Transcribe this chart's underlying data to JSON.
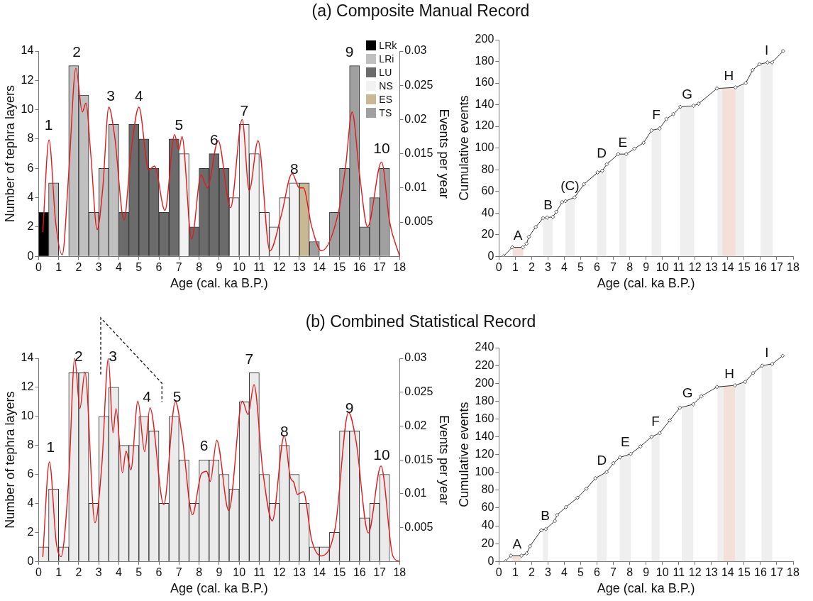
{
  "chart_data": [
    {
      "type": "bar",
      "title": "(a) Composite Manual Record",
      "xlabel": "Age (cal. ka B.P.)",
      "ylabel": "Number of tephra layers",
      "y2label": "Events per year",
      "legend": "top right",
      "xlim": [
        0,
        18
      ],
      "xticks": [
        0,
        1,
        2,
        3,
        4,
        5,
        6,
        7,
        8,
        9,
        10,
        11,
        12,
        13,
        14,
        15,
        16,
        17,
        18
      ],
      "ylim": [
        0,
        14
      ],
      "yticks": [
        0,
        2,
        4,
        6,
        8,
        10,
        12,
        14
      ],
      "y2lim": [
        0,
        0.03
      ],
      "y2ticks": [
        0.005,
        0.01,
        0.015,
        0.02,
        0.025,
        0.03
      ],
      "series": [
        {
          "name": "LRk",
          "color": "#000000",
          "x": [
            0.25
          ],
          "values": [
            3
          ]
        },
        {
          "name": "LRi",
          "color": "#c0c0c0",
          "x": [
            0.75,
            1.75,
            2.25,
            2.75,
            3.25,
            3.75
          ],
          "values": [
            5,
            13,
            11,
            3,
            6,
            9
          ]
        },
        {
          "name": "LU",
          "color": "#6b6b6b",
          "x": [
            4.25,
            4.75,
            5.25,
            5.75,
            6.25,
            6.75,
            7.75,
            8.25,
            8.75,
            9.25
          ],
          "values": [
            3,
            9,
            8,
            6,
            3,
            8,
            2,
            6,
            7,
            6
          ]
        },
        {
          "name": "NS",
          "color": "#f2f2f2",
          "x": [
            7.25,
            9.75,
            10.25,
            10.75,
            11.25,
            11.75,
            12.25,
            12.75
          ],
          "values": [
            7,
            4,
            9,
            7,
            3,
            2,
            4,
            5
          ]
        },
        {
          "name": "ES",
          "color": "#c8b896",
          "x": [
            13.25
          ],
          "values": [
            5
          ]
        },
        {
          "name": "TS",
          "color": "#a0a0a0",
          "x": [
            13.75,
            14.75,
            15.25,
            15.75,
            16.25,
            16.75,
            17.25
          ],
          "values": [
            1,
            3,
            6,
            13,
            2,
            4,
            6
          ]
        },
        {
          "type": "line",
          "axis": "y2",
          "color": "#e41a1c",
          "x": [
            0.21,
            0.52,
            0.85,
            1.18,
            1.5,
            1.86,
            2.18,
            2.36,
            2.6,
            2.92,
            3.2,
            3.5,
            3.79,
            4.26,
            4.6,
            5.0,
            5.49,
            5.78,
            6.3,
            6.78,
            6.99,
            7.15,
            7.63,
            8.1,
            8.41,
            8.95,
            9.57,
            10.15,
            10.5,
            10.94,
            11.53,
            12.1,
            12.64,
            13.0,
            13.2,
            13.6,
            14.1,
            14.93,
            15.3,
            15.63,
            16.0,
            16.4,
            17.1,
            17.5,
            18.0
          ],
          "values": [
            0.0036,
            0.017,
            0.005,
            0.0002,
            0.012,
            0.0275,
            0.0211,
            0.0224,
            0.015,
            0.0039,
            0.01,
            0.0218,
            0.0176,
            0.0053,
            0.015,
            0.0218,
            0.0126,
            0.0132,
            0.0067,
            0.0178,
            0.0155,
            0.0175,
            0.0025,
            0.0119,
            0.01,
            0.0169,
            0.0071,
            0.02,
            0.0096,
            0.0169,
            0.0008,
            0.006,
            0.0121,
            0.01,
            0.01,
            0.0045,
            0.0008,
            0.0062,
            0.013,
            0.0211,
            0.012,
            0.0043,
            0.0138,
            0.005,
            0.0
          ]
        }
      ],
      "annotations": [
        {
          "text": "1",
          "x": 0.5,
          "y": 8
        },
        {
          "text": "2",
          "x": 1.9,
          "y": 13
        },
        {
          "text": "3",
          "x": 3.6,
          "y": 10
        },
        {
          "text": "4",
          "x": 5.0,
          "y": 10
        },
        {
          "text": "5",
          "x": 7.0,
          "y": 8
        },
        {
          "text": "6",
          "x": 8.75,
          "y": 7
        },
        {
          "text": "7",
          "x": 10.25,
          "y": 9
        },
        {
          "text": "8",
          "x": 12.75,
          "y": 5
        },
        {
          "text": "9",
          "x": 15.5,
          "y": 13
        },
        {
          "text": "10",
          "x": 17.1,
          "y": 6.4
        }
      ]
    },
    {
      "type": "line",
      "ylabel": "Cumulative events",
      "xlabel": "Age (cal. ka B.P.)",
      "marker": "diamond",
      "xlim": [
        0,
        18
      ],
      "xticks": [
        0,
        1,
        2,
        3,
        4,
        5,
        6,
        7,
        8,
        9,
        10,
        11,
        12,
        13,
        14,
        15,
        16,
        17,
        18
      ],
      "ylim": [
        0,
        200
      ],
      "yticks": [
        0,
        20,
        40,
        60,
        80,
        100,
        120,
        140,
        160,
        180,
        200
      ],
      "series": [
        {
          "color": "#333333",
          "x": [
            0.28,
            0.81,
            1.47,
            1.69,
            1.83,
            2.25,
            2.7,
            2.95,
            3.3,
            3.51,
            3.86,
            4.07,
            4.63,
            5.2,
            6.04,
            6.32,
            6.6,
            7.3,
            7.79,
            8.29,
            8.85,
            9.34,
            9.83,
            10.25,
            10.67,
            11.1,
            11.91,
            12.22,
            13.34,
            14.47,
            15.1,
            15.52,
            15.94,
            16.43,
            16.71,
            17.39
          ],
          "values": [
            0,
            8.3,
            8.3,
            11.6,
            18,
            27,
            35.3,
            35.8,
            36.4,
            41,
            50,
            51,
            54.4,
            66.5,
            77.5,
            79,
            85,
            94.4,
            94.4,
            99.4,
            104.8,
            116.3,
            118,
            126.8,
            131.3,
            138,
            139,
            141,
            155,
            156,
            160,
            172,
            177.4,
            179,
            179,
            189.5
          ]
        }
      ],
      "bands": [
        {
          "axis": "x",
          "from": 0.84,
          "to": 1.49,
          "color": "#f3e0d8",
          "label": "A"
        },
        {
          "axis": "x",
          "from": 2.71,
          "to": 3.3,
          "color": "#efefef",
          "label": "B"
        },
        {
          "axis": "x",
          "from": 4.06,
          "to": 4.63,
          "color": "#efefef",
          "label": "(C)"
        },
        {
          "axis": "x",
          "from": 6.01,
          "to": 6.57,
          "color": "#efefef",
          "label": "D"
        },
        {
          "axis": "x",
          "from": 7.37,
          "to": 7.79,
          "color": "#efefef",
          "label": "E"
        },
        {
          "axis": "x",
          "from": 9.34,
          "to": 9.92,
          "color": "#efefef",
          "label": "F"
        },
        {
          "axis": "x",
          "from": 11.1,
          "to": 11.94,
          "color": "#efefef",
          "label": "G"
        },
        {
          "axis": "x",
          "from": 13.37,
          "to": 15.0,
          "color": "#efefef"
        },
        {
          "axis": "x",
          "from": 13.67,
          "to": 14.47,
          "color": "#f3e0d8",
          "label": "H"
        },
        {
          "axis": "x",
          "from": 16.01,
          "to": 16.74,
          "color": "#efefef",
          "label": "I"
        }
      ]
    },
    {
      "type": "bar",
      "title": "(b) Combined Statistical Record",
      "xlabel": "Age (cal. ka B.P.)",
      "ylabel": "Number of tephra layers",
      "y2label": "Events per year",
      "xlim": [
        0,
        18
      ],
      "xticks": [
        0,
        1,
        2,
        3,
        4,
        5,
        6,
        7,
        8,
        9,
        10,
        11,
        12,
        13,
        14,
        15,
        16,
        17,
        18
      ],
      "ylim": [
        0,
        14
      ],
      "yticks": [
        0,
        2,
        4,
        6,
        8,
        10,
        12,
        14
      ],
      "y2lim": [
        0,
        0.03
      ],
      "y2ticks": [
        0.005,
        0.01,
        0.015,
        0.02,
        0.025,
        0.03
      ],
      "series": [
        {
          "color": "#ebebeb",
          "x": [
            0.25,
            0.75,
            1.25,
            1.75,
            2.25,
            2.75,
            3.25,
            3.75,
            4.25,
            4.75,
            5.25,
            5.75,
            6.25,
            6.75,
            7.25,
            7.75,
            8.25,
            8.75,
            9.25,
            9.75,
            10.25,
            10.75,
            11.25,
            11.75,
            12.25,
            12.75,
            13.25,
            13.75,
            14.25,
            14.75,
            15.25,
            15.75,
            16.25,
            16.75,
            17.25
          ],
          "values": [
            1,
            5,
            1,
            13,
            13,
            4,
            10,
            12,
            8,
            8,
            10,
            9,
            4,
            10,
            7,
            4,
            7,
            7,
            6,
            5,
            11,
            13,
            6,
            4,
            8,
            6,
            4,
            1,
            1,
            2,
            9,
            9,
            3,
            4,
            6
          ]
        },
        {
          "type": "line",
          "axis": "y2",
          "color": "#e41a1c",
          "x": [
            0.21,
            0.54,
            0.88,
            1.12,
            1.5,
            1.8,
            2.06,
            2.31,
            2.81,
            3.15,
            3.48,
            3.71,
            3.86,
            4.18,
            4.36,
            4.6,
            4.95,
            5.29,
            5.55,
            6.24,
            6.82,
            7.16,
            7.67,
            8.11,
            8.38,
            8.56,
            8.88,
            9.48,
            10.16,
            10.44,
            10.74,
            11.18,
            11.65,
            12.25,
            12.55,
            12.72,
            12.9,
            13.2,
            13.61,
            14.08,
            14.79,
            15.45,
            15.82,
            16.44,
            17.07,
            17.66,
            18.0
          ],
          "values": [
            0.0007,
            0.0147,
            0.0028,
            0.0007,
            0.012,
            0.03,
            0.0226,
            0.028,
            0.0057,
            0.0141,
            0.03,
            0.019,
            0.0226,
            0.0131,
            0.0163,
            0.0135,
            0.0237,
            0.0162,
            0.0227,
            0.0084,
            0.0236,
            0.0184,
            0.0069,
            0.0129,
            0.0133,
            0.0118,
            0.0179,
            0.0075,
            0.0237,
            0.0217,
            0.0261,
            0.0133,
            0.006,
            0.0186,
            0.0124,
            0.0117,
            0.0099,
            0.0103,
            0.0032,
            0.0008,
            0.005,
            0.022,
            0.0179,
            0.0042,
            0.0141,
            0.0008,
            0.0
          ]
        }
      ],
      "annotations": [
        {
          "text": "1",
          "x": 0.6,
          "y": 6.9
        },
        {
          "text": "2",
          "x": 2.0,
          "y": 13.2
        },
        {
          "text": "3",
          "x": 3.7,
          "y": 13.2
        },
        {
          "text": "4",
          "x": 5.4,
          "y": 10.4
        },
        {
          "text": "5",
          "x": 6.9,
          "y": 10.4
        },
        {
          "text": "6",
          "x": 8.25,
          "y": 7
        },
        {
          "text": "7",
          "x": 10.5,
          "y": 13
        },
        {
          "text": "8",
          "x": 12.25,
          "y": 8
        },
        {
          "text": "9",
          "x": 15.5,
          "y": 9.6
        },
        {
          "text": "10",
          "x": 17.1,
          "y": 6.4
        }
      ]
    },
    {
      "type": "line",
      "ylabel": "Cumulative events",
      "xlabel": "Age (cal. ka B.P.)",
      "marker": "diamond",
      "xlim": [
        0,
        18
      ],
      "xticks": [
        0,
        1,
        2,
        3,
        4,
        5,
        6,
        7,
        8,
        9,
        10,
        11,
        12,
        13,
        14,
        15,
        16,
        17,
        18
      ],
      "ylim": [
        0,
        240
      ],
      "yticks": [
        0,
        20,
        40,
        60,
        80,
        100,
        120,
        140,
        160,
        180,
        200,
        220,
        240
      ],
      "series": [
        {
          "color": "#333333",
          "x": [
            0.39,
            0.73,
            1.38,
            1.7,
            1.9,
            2.59,
            2.87,
            3.42,
            3.55,
            4.1,
            4.8,
            5.35,
            5.9,
            6.59,
            7.0,
            7.41,
            8.06,
            8.65,
            9.34,
            9.83,
            10.45,
            11.07,
            11.89,
            12.38,
            13.34,
            14.44,
            15.06,
            15.55,
            16.1,
            16.72,
            17.36
          ],
          "values": [
            0,
            6.5,
            6.5,
            9,
            17,
            35,
            36.3,
            45.4,
            52,
            61,
            71.4,
            81.7,
            93.4,
            100.4,
            110.3,
            116.8,
            120.7,
            129,
            140,
            144,
            158.3,
            172.5,
            176.4,
            185.5,
            195.9,
            197.7,
            201.6,
            211.5,
            219.8,
            221.8,
            230.9
          ]
        }
      ],
      "bands": [
        {
          "axis": "x",
          "from": 0.83,
          "to": 1.38,
          "color": "#f3e0d8",
          "label": "A"
        },
        {
          "axis": "x",
          "from": 2.69,
          "to": 2.98,
          "color": "#efefef",
          "label": "B"
        },
        {
          "axis": "x",
          "from": 6.0,
          "to": 6.6,
          "color": "#efefef",
          "label": "D"
        },
        {
          "axis": "x",
          "from": 7.39,
          "to": 8.06,
          "color": "#efefef",
          "label": "E"
        },
        {
          "axis": "x",
          "from": 9.34,
          "to": 9.83,
          "color": "#efefef",
          "label": "F"
        },
        {
          "axis": "x",
          "from": 11.19,
          "to": 11.89,
          "color": "#efefef",
          "label": "G"
        },
        {
          "axis": "x",
          "from": 13.37,
          "to": 15.08,
          "color": "#efefef"
        },
        {
          "axis": "x",
          "from": 13.75,
          "to": 14.44,
          "color": "#f3e0d8",
          "label": "H"
        },
        {
          "axis": "x",
          "from": 16.06,
          "to": 16.72,
          "color": "#efefef",
          "label": "I"
        }
      ]
    }
  ]
}
